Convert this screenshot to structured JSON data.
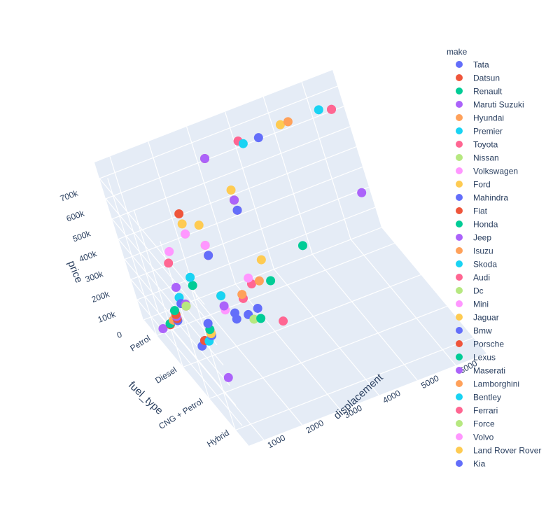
{
  "chart_data": {
    "type": "scatter3d",
    "legend_title": "make",
    "legend_position": "right",
    "axes": {
      "x": {
        "label": "displacement",
        "ticks": [
          1000,
          2000,
          3000,
          4000,
          5000,
          6000
        ],
        "tick_labels": [
          "1000",
          "2000",
          "3000",
          "4000",
          "5000",
          "6000"
        ],
        "range": [
          600,
          6800
        ]
      },
      "y": {
        "label": "fuel_type",
        "ticks": [
          "Petrol",
          "Diesel",
          "CNG + Petrol",
          "Hybrid"
        ],
        "tick_labels": [
          "Petrol",
          "Diesel",
          "CNG + Petrol",
          "Hybrid"
        ]
      },
      "z": {
        "label": "price",
        "ticks": [
          0,
          100000,
          200000,
          300000,
          400000,
          500000,
          600000,
          700000
        ],
        "tick_labels": [
          "0",
          "100k",
          "200k",
          "300k",
          "400k",
          "500k",
          "600k",
          "700k"
        ],
        "range": [
          0,
          780000
        ]
      }
    },
    "series": [
      {
        "name": "Tata",
        "color": "#636efa",
        "points": [
          [
            1200,
            "Petrol",
            30000
          ],
          [
            1500,
            "Diesel",
            90000
          ],
          [
            1200,
            "Diesel",
            60000
          ],
          [
            2200,
            "Diesel",
            120000
          ]
        ]
      },
      {
        "name": "Datsun",
        "color": "#EF553B",
        "points": [
          [
            1000,
            "Petrol",
            25000
          ],
          [
            1200,
            "Petrol",
            40000
          ]
        ]
      },
      {
        "name": "Renault",
        "color": "#00cc96",
        "points": [
          [
            1000,
            "Petrol",
            30000
          ],
          [
            1500,
            "Diesel",
            100000
          ],
          [
            1200,
            "Petrol",
            60000
          ]
        ]
      },
      {
        "name": "Maruti Suzuki",
        "color": "#ab63fa",
        "points": [
          [
            800,
            "Petrol",
            20000
          ],
          [
            1200,
            "Petrol",
            50000
          ],
          [
            1300,
            "Diesel",
            80000
          ],
          [
            1200,
            "CNG + Petrol",
            60000
          ],
          [
            1500,
            "Petrol",
            90000
          ]
        ]
      },
      {
        "name": "Hyundai",
        "color": "#FFA15A",
        "points": [
          [
            1200,
            "Petrol",
            60000
          ],
          [
            1500,
            "Diesel",
            110000
          ],
          [
            1100,
            "Petrol",
            40000
          ]
        ]
      },
      {
        "name": "Premier",
        "color": "#19d3f3",
        "points": [
          [
            1400,
            "Diesel",
            70000
          ]
        ]
      },
      {
        "name": "Toyota",
        "color": "#FF6692",
        "points": [
          [
            1500,
            "Petrol",
            80000
          ],
          [
            2500,
            "Diesel",
            200000
          ],
          [
            2800,
            "Diesel",
            250000
          ],
          [
            2500,
            "Hybrid",
            400000
          ]
        ]
      },
      {
        "name": "Nissan",
        "color": "#B6E880",
        "points": [
          [
            1500,
            "Petrol",
            80000
          ],
          [
            1500,
            "Diesel",
            100000
          ]
        ]
      },
      {
        "name": "Volkswagen",
        "color": "#FF97FF",
        "points": [
          [
            1200,
            "Petrol",
            70000
          ],
          [
            1500,
            "Diesel",
            110000
          ],
          [
            2000,
            "Diesel",
            180000
          ]
        ]
      },
      {
        "name": "Ford",
        "color": "#FECB52",
        "points": [
          [
            1200,
            "Petrol",
            60000
          ],
          [
            1500,
            "Diesel",
            100000
          ],
          [
            2000,
            "Diesel",
            250000
          ],
          [
            3200,
            "Diesel",
            340000
          ]
        ]
      },
      {
        "name": "Mahindra",
        "color": "#636efa",
        "points": [
          [
            2200,
            "Diesel",
            150000
          ],
          [
            2500,
            "Diesel",
            120000
          ]
        ]
      },
      {
        "name": "Fiat",
        "color": "#EF553B",
        "points": [
          [
            1200,
            "Petrol",
            60000
          ],
          [
            1300,
            "Diesel",
            80000
          ]
        ]
      },
      {
        "name": "Honda",
        "color": "#00cc96",
        "points": [
          [
            1200,
            "Petrol",
            80000
          ],
          [
            1500,
            "Diesel",
            120000
          ],
          [
            1800,
            "Petrol",
            160000
          ],
          [
            2000,
            "Hybrid",
            450000
          ]
        ]
      },
      {
        "name": "Jeep",
        "color": "#ab63fa",
        "points": [
          [
            2000,
            "Diesel",
            200000
          ],
          [
            1400,
            "Petrol",
            180000
          ],
          [
            6400,
            "Petrol",
            280000
          ]
        ]
      },
      {
        "name": "Isuzu",
        "color": "#FFA15A",
        "points": [
          [
            2500,
            "Diesel",
            220000
          ],
          [
            3000,
            "Diesel",
            250000
          ]
        ]
      },
      {
        "name": "Skoda",
        "color": "#19d3f3",
        "points": [
          [
            1400,
            "Petrol",
            130000
          ],
          [
            1800,
            "Petrol",
            200000
          ],
          [
            2000,
            "Diesel",
            250000
          ]
        ]
      },
      {
        "name": "Audi",
        "color": "#FF6692",
        "points": [
          [
            1400,
            "Petrol",
            300000
          ],
          [
            2000,
            "Diesel",
            450000
          ],
          [
            3000,
            "Diesel",
            600000
          ],
          [
            6300,
            "Petrol",
            700000
          ]
        ]
      },
      {
        "name": "Dc",
        "color": "#B6E880",
        "points": [
          [
            2000,
            "Petrol",
            400000
          ]
        ]
      },
      {
        "name": "Mini",
        "color": "#FF97FF",
        "points": [
          [
            1500,
            "Petrol",
            350000
          ],
          [
            2000,
            "Petrol",
            400000
          ]
        ]
      },
      {
        "name": "Jaguar",
        "color": "#FECB52",
        "points": [
          [
            2000,
            "Diesel",
            500000
          ],
          [
            2000,
            "Petrol",
            450000
          ],
          [
            3000,
            "Diesel",
            650000
          ]
        ]
      },
      {
        "name": "Bmw",
        "color": "#636efa",
        "points": [
          [
            2000,
            "Diesel",
            450000
          ],
          [
            3000,
            "Diesel",
            600000
          ],
          [
            4400,
            "Petrol",
            700000
          ],
          [
            2000,
            "Hybrid",
            500000
          ]
        ]
      },
      {
        "name": "Porsche",
        "color": "#EF553B",
        "points": [
          [
            3000,
            "Petrol",
            700000
          ],
          [
            3000,
            "Diesel",
            650000
          ],
          [
            2000,
            "Petrol",
            500000
          ]
        ]
      },
      {
        "name": "Lexus",
        "color": "#00cc96",
        "points": [
          [
            2500,
            "Hybrid",
            600000
          ],
          [
            3500,
            "Hybrid",
            700000
          ]
        ]
      },
      {
        "name": "Maserati",
        "color": "#ab63fa",
        "points": [
          [
            3000,
            "Petrol",
            700000
          ],
          [
            3000,
            "Diesel",
            650000
          ]
        ]
      },
      {
        "name": "Lamborghini",
        "color": "#FFA15A",
        "points": [
          [
            5200,
            "Petrol",
            720000
          ]
        ]
      },
      {
        "name": "Bentley",
        "color": "#19d3f3",
        "points": [
          [
            6000,
            "Petrol",
            720000
          ],
          [
            4000,
            "Petrol",
            700000
          ]
        ]
      },
      {
        "name": "Ferrari",
        "color": "#FF6692",
        "points": [
          [
            3900,
            "Petrol",
            720000
          ],
          [
            6300,
            "Petrol",
            700000
          ]
        ]
      },
      {
        "name": "Force",
        "color": "#B6E880",
        "points": [
          [
            2600,
            "Diesel",
            90000
          ]
        ]
      },
      {
        "name": "Volvo",
        "color": "#FF97FF",
        "points": [
          [
            2000,
            "Diesel",
            500000
          ],
          [
            2000,
            "Hybrid",
            650000
          ]
        ]
      },
      {
        "name": "Land Rover Rover",
        "color": "#FECB52",
        "points": [
          [
            2000,
            "Diesel",
            600000
          ],
          [
            3000,
            "Diesel",
            700000
          ],
          [
            5000,
            "Petrol",
            720000
          ]
        ]
      },
      {
        "name": "Kia",
        "color": "#636efa",
        "points": [
          [
            1500,
            "Diesel",
            150000
          ],
          [
            1400,
            "Petrol",
            100000
          ]
        ]
      }
    ]
  }
}
